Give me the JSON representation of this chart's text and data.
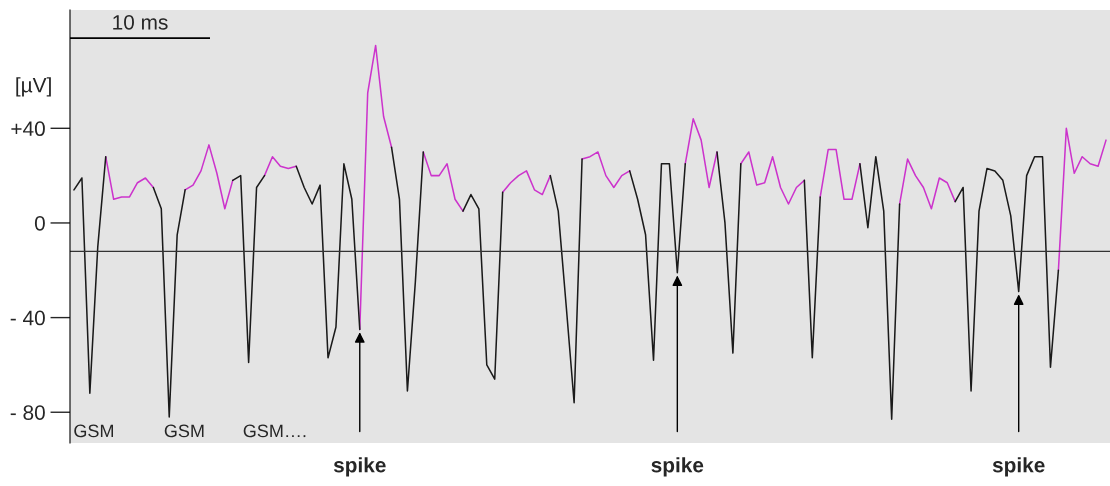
{
  "chart_data": {
    "type": "line",
    "ylabel": "[µV]",
    "categories": [
      null,
      null,
      null,
      null,
      null,
      null,
      null,
      null,
      null,
      null,
      null,
      null,
      null,
      null,
      null,
      null,
      null,
      null,
      null,
      null,
      null,
      null,
      null,
      null,
      null,
      null,
      null,
      null,
      null,
      null,
      null,
      null,
      null,
      null,
      null,
      null,
      null,
      null,
      null,
      null,
      null,
      null,
      null,
      null,
      null,
      null,
      null,
      null,
      null,
      null,
      null,
      null,
      null,
      null,
      null,
      null,
      null,
      null,
      null,
      null,
      null,
      null,
      null,
      null,
      null,
      null,
      null,
      null,
      null,
      null,
      null,
      null,
      null,
      null,
      null,
      null,
      null,
      null,
      null,
      null,
      null,
      null,
      null,
      null,
      null,
      null,
      null,
      null,
      null,
      null,
      null,
      null,
      null,
      null,
      null,
      null,
      null,
      null,
      null,
      null,
      null,
      null,
      null,
      null,
      null,
      null,
      null,
      null,
      null,
      null,
      null,
      null,
      null,
      null,
      null,
      null,
      null,
      null,
      null,
      null,
      null,
      null,
      null,
      null,
      null,
      null,
      null,
      null,
      null,
      null,
      null
    ],
    "series": [
      {
        "color": "#cc33cc",
        "values": [
          null,
          null,
          null,
          null,
          28,
          10,
          11,
          11,
          17,
          19,
          15,
          null,
          null,
          null,
          14,
          16,
          22,
          33,
          21,
          6,
          18,
          null,
          null,
          null,
          20,
          28,
          24,
          23,
          24,
          null,
          null,
          null,
          null,
          null,
          null,
          null,
          -45,
          55,
          75,
          45,
          32,
          null,
          null,
          null,
          30,
          20,
          20,
          25,
          10,
          5,
          null,
          null,
          null,
          null,
          13,
          17,
          20,
          22,
          14,
          12,
          20,
          null,
          null,
          null,
          27,
          28,
          30,
          20,
          15,
          20,
          22,
          null,
          null,
          null,
          null,
          null,
          null,
          25,
          44,
          35,
          15,
          30,
          null,
          null,
          25,
          30,
          16,
          17,
          28,
          15,
          8,
          15,
          18,
          null,
          11,
          31,
          31,
          10,
          10,
          25,
          null,
          null,
          null,
          null,
          8,
          27,
          20,
          15,
          6,
          19,
          17,
          9,
          null,
          null,
          null,
          null,
          null,
          null,
          null,
          null,
          null,
          null,
          null,
          null,
          -20,
          40,
          21,
          28,
          25,
          24,
          35
        ]
      },
      {
        "color": "#1a1a1a",
        "values": [
          14,
          19,
          -72,
          -10,
          28,
          null,
          null,
          null,
          null,
          null,
          15,
          6,
          -82,
          -5,
          14,
          null,
          null,
          null,
          null,
          null,
          18,
          20,
          -59,
          15,
          20,
          null,
          null,
          null,
          24,
          15,
          8,
          16,
          -57,
          -44,
          25,
          10,
          -45,
          null,
          null,
          null,
          32,
          10,
          -71,
          -25,
          30,
          null,
          null,
          null,
          null,
          5,
          12,
          6,
          -60,
          -66,
          13,
          null,
          null,
          null,
          null,
          null,
          20,
          5,
          -35,
          -76,
          27,
          null,
          null,
          null,
          null,
          null,
          22,
          10,
          -5,
          -58,
          25,
          25,
          -21,
          25,
          null,
          null,
          null,
          30,
          0,
          -55,
          25,
          null,
          null,
          null,
          null,
          null,
          null,
          null,
          18,
          -57,
          11,
          null,
          null,
          null,
          null,
          25,
          -2,
          28,
          5,
          -83,
          8,
          null,
          null,
          null,
          null,
          null,
          null,
          9,
          15,
          -71,
          5,
          23,
          22,
          18,
          3,
          -29,
          20,
          28,
          28,
          -61,
          -20,
          null,
          null,
          null,
          null,
          null,
          null
        ]
      }
    ],
    "ylim": [
      -93,
      90
    ],
    "yticks": [
      {
        "value": 40,
        "label": "+40"
      },
      0,
      {
        "value": -40,
        "label": "- 40"
      },
      {
        "value": -80,
        "label": "- 80"
      }
    ],
    "tick_labels": "y",
    "grid": false,
    "legend": false,
    "ref_lines": [
      {
        "axis": "y",
        "value": -12,
        "color": "#333333"
      }
    ],
    "annotations": [
      "10 ms",
      "GSM",
      "GSM",
      "GSM….",
      {
        "text": "spike",
        "y": -45
      },
      {
        "text": "spike",
        "y": -21
      },
      {
        "text": "spike",
        "y": -29
      }
    ]
  }
}
